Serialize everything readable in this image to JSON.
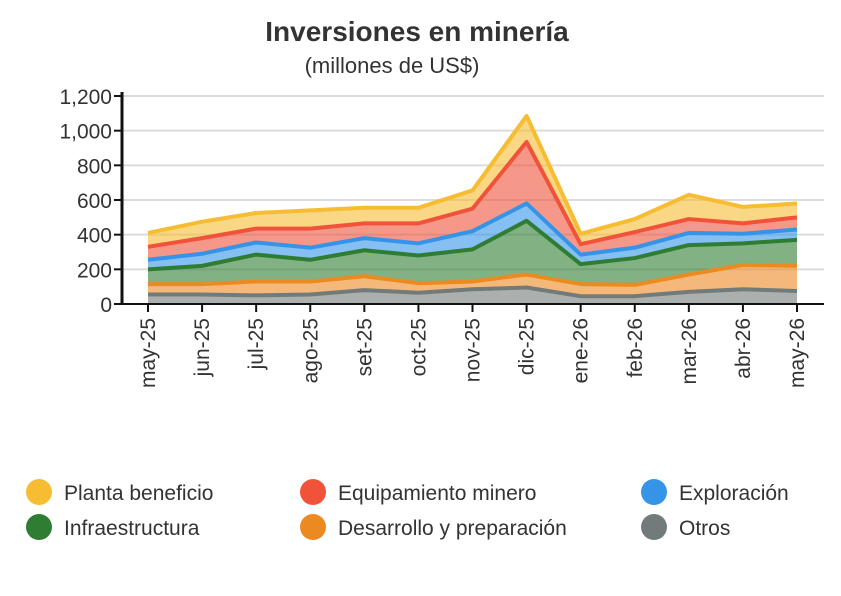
{
  "chart_data": {
    "type": "area",
    "stacked": true,
    "title": "Inversiones en minería",
    "subtitle": "(millones de US$)",
    "categories": [
      "may-25",
      "jun-25",
      "jul-25",
      "ago-25",
      "set-25",
      "oct-25",
      "nov-25",
      "dic-25",
      "ene-26",
      "feb-26",
      "mar-26",
      "abr-26",
      "may-26"
    ],
    "ylim": [
      0,
      1200
    ],
    "yticks": [
      "0",
      "200",
      "400",
      "600",
      "800",
      "1,000",
      "1,200"
    ],
    "ytick_values": [
      0,
      200,
      400,
      600,
      800,
      1000,
      1200
    ],
    "grid": true,
    "legend_position": "bottom",
    "series": [
      {
        "name": "Otros",
        "color": "#737b7a",
        "values": [
          55,
          55,
          50,
          55,
          80,
          65,
          85,
          95,
          45,
          45,
          70,
          85,
          75
        ]
      },
      {
        "name": "Desarrollo y preparación",
        "color": "#ec8a22",
        "values": [
          60,
          60,
          80,
          75,
          80,
          55,
          45,
          75,
          70,
          65,
          100,
          140,
          145
        ]
      },
      {
        "name": "Infraestructura",
        "color": "#2e7d32",
        "values": [
          85,
          105,
          155,
          125,
          150,
          160,
          185,
          310,
          115,
          155,
          170,
          125,
          150
        ]
      },
      {
        "name": "Exploración",
        "color": "#3594e8",
        "values": [
          55,
          70,
          70,
          70,
          70,
          70,
          105,
          100,
          55,
          60,
          70,
          55,
          60
        ]
      },
      {
        "name": "Equipamiento minero",
        "color": "#f0533a",
        "values": [
          75,
          90,
          80,
          110,
          85,
          115,
          130,
          355,
          60,
          90,
          80,
          60,
          70
        ]
      },
      {
        "name": "Planta beneficio",
        "color": "#f6bd33",
        "values": [
          80,
          95,
          90,
          105,
          90,
          90,
          105,
          150,
          60,
          75,
          140,
          95,
          80
        ]
      }
    ],
    "legend_order": [
      "Planta beneficio",
      "Equipamiento minero",
      "Exploración",
      "Infraestructura",
      "Desarrollo y preparación",
      "Otros"
    ]
  }
}
